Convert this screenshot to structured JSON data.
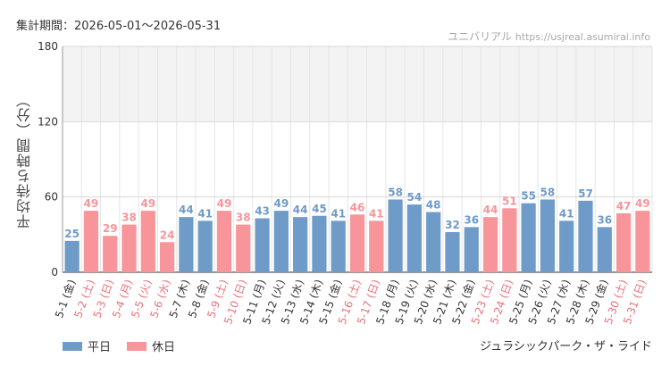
{
  "period_label": "集計期間：2026-05-01～2026-05-31",
  "site": {
    "name": "ユニバリアル",
    "url": "https://usjreal.asumirai.info"
  },
  "ride_name": "ジュラシックパーク・ザ・ライド",
  "colors": {
    "weekday": "#6f9bc8",
    "holiday": "#f7959a",
    "grid": "#e5e5e5",
    "band": "#f3f3f3"
  },
  "chart_data": {
    "type": "bar",
    "ylabel": "平均待ち時間（分）",
    "ylim": [
      0,
      180
    ],
    "yticks": [
      0,
      60,
      120,
      180
    ],
    "shaded_band": [
      120,
      180
    ],
    "legend": [
      {
        "key": "weekday",
        "label": "平日"
      },
      {
        "key": "holiday",
        "label": "休日"
      }
    ],
    "categories": [
      "5-1 (金)",
      "5-2 (土)",
      "5-3 (日)",
      "5-4 (月)",
      "5-5 (火)",
      "5-6 (水)",
      "5-7 (木)",
      "5-8 (金)",
      "5-9 (土)",
      "5-10 (日)",
      "5-11 (月)",
      "5-12 (火)",
      "5-13 (水)",
      "5-14 (木)",
      "5-15 (金)",
      "5-16 (土)",
      "5-17 (日)",
      "5-18 (月)",
      "5-19 (火)",
      "5-20 (水)",
      "5-21 (木)",
      "5-22 (金)",
      "5-23 (土)",
      "5-24 (日)",
      "5-25 (月)",
      "5-26 (火)",
      "5-27 (水)",
      "5-28 (木)",
      "5-29 (金)",
      "5-30 (土)",
      "5-31 (日)"
    ],
    "values": [
      25,
      49,
      29,
      38,
      49,
      24,
      44,
      41,
      49,
      38,
      43,
      49,
      44,
      45,
      41,
      46,
      41,
      58,
      54,
      48,
      32,
      36,
      44,
      51,
      55,
      58,
      41,
      57,
      36,
      47,
      49
    ],
    "day_type": [
      "weekday",
      "holiday",
      "holiday",
      "holiday",
      "holiday",
      "holiday",
      "weekday",
      "weekday",
      "holiday",
      "holiday",
      "weekday",
      "weekday",
      "weekday",
      "weekday",
      "weekday",
      "holiday",
      "holiday",
      "weekday",
      "weekday",
      "weekday",
      "weekday",
      "weekday",
      "holiday",
      "holiday",
      "weekday",
      "weekday",
      "weekday",
      "weekday",
      "weekday",
      "holiday",
      "holiday"
    ]
  }
}
